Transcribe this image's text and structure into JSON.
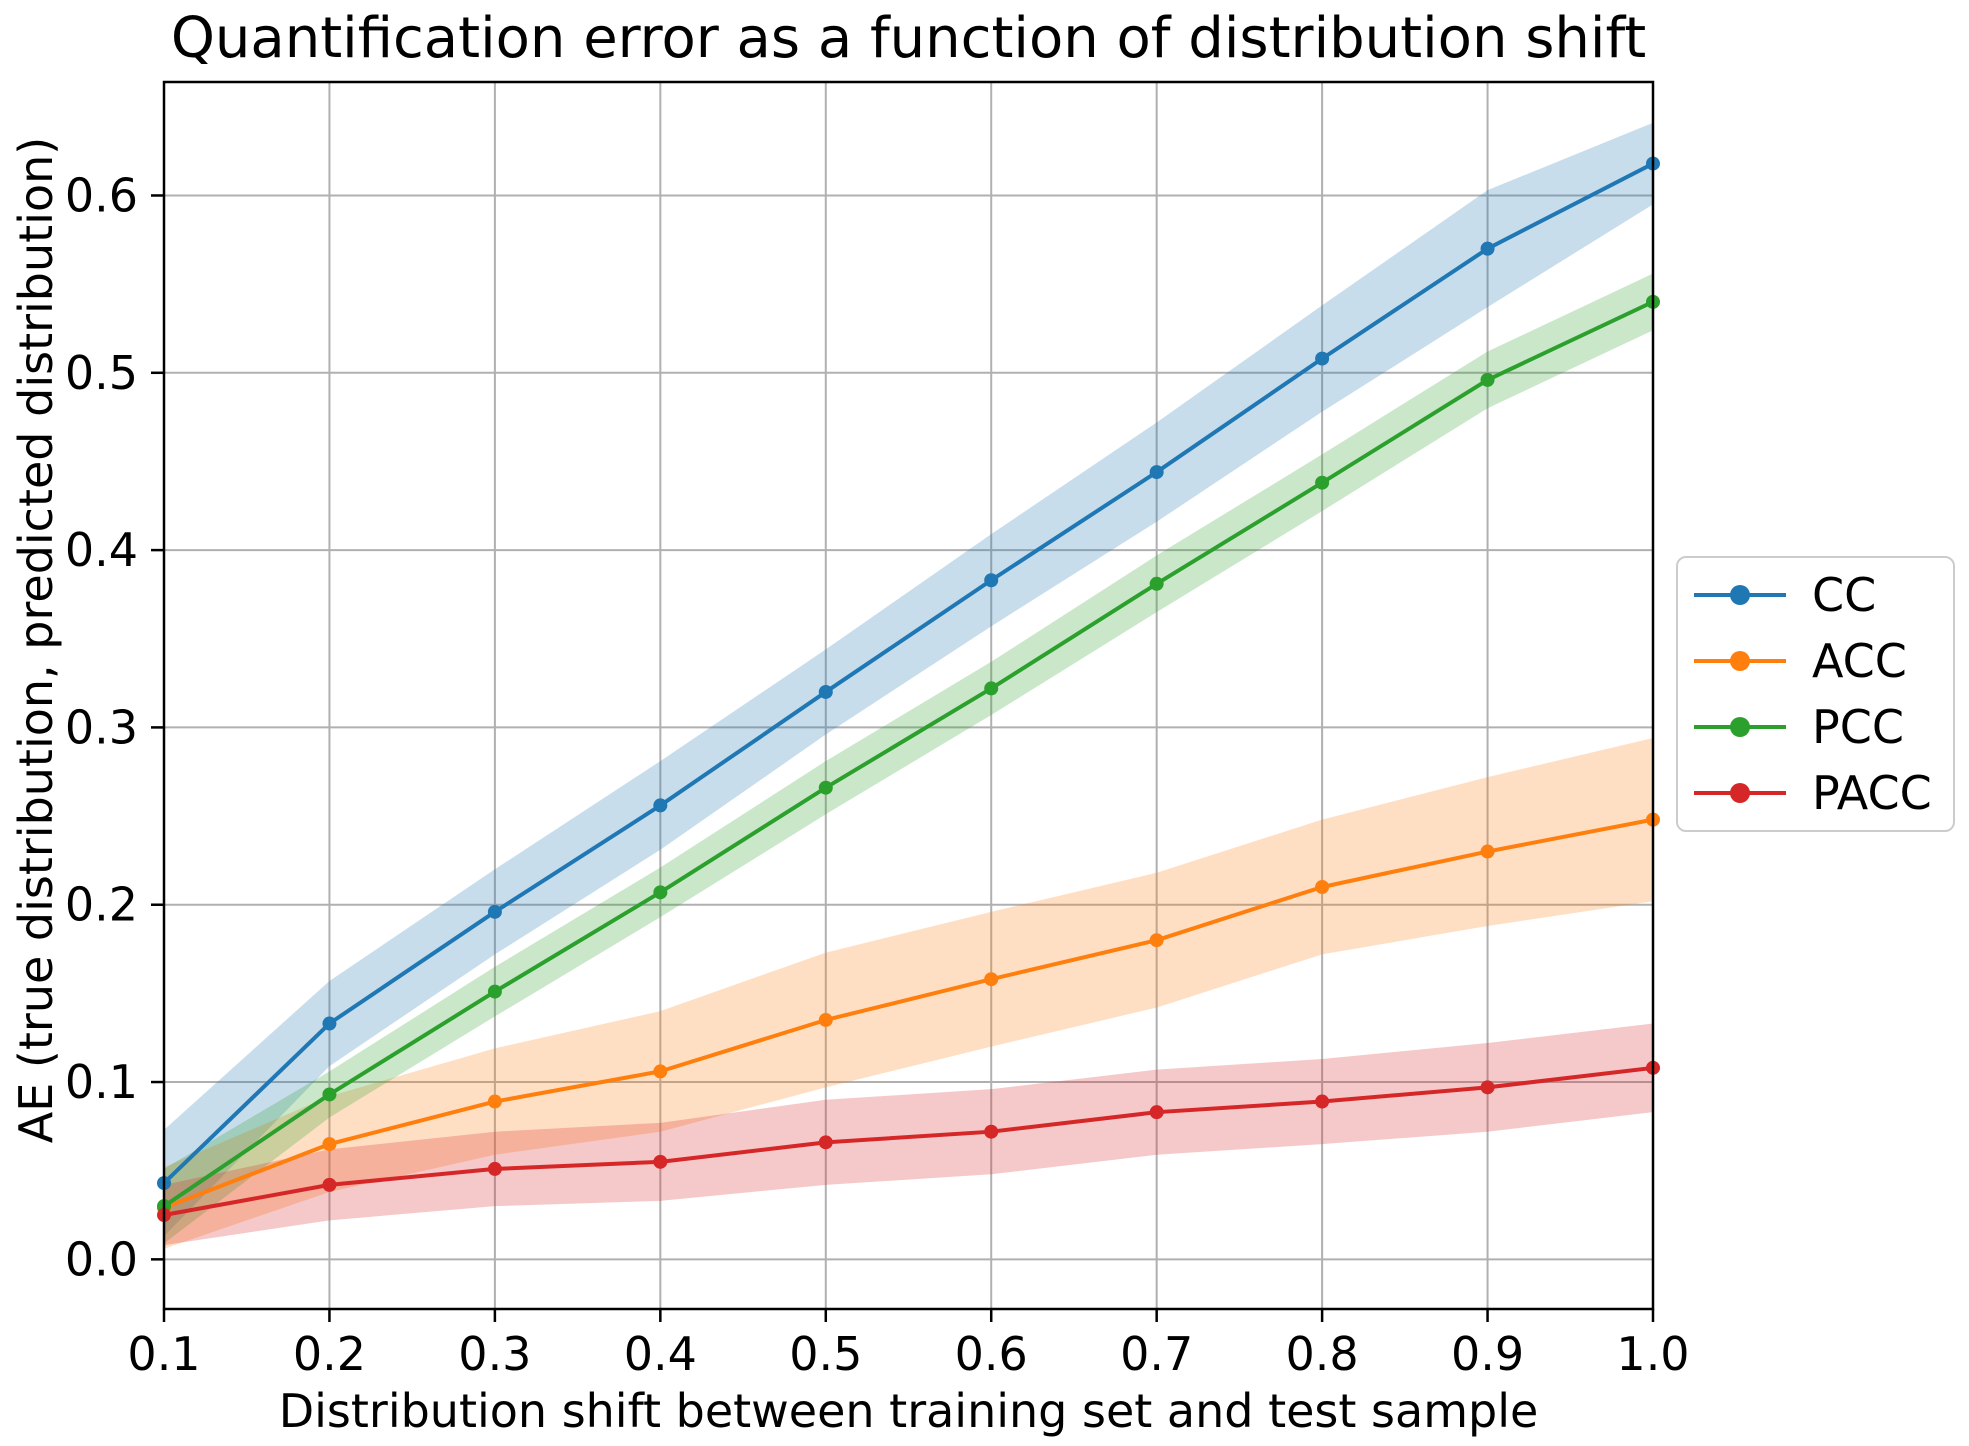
{
  "chart": {
    "title": "Quantification error as a function of distribution shift",
    "xlabel": "Distribution shift between training set and test sample",
    "ylabel": "AE (true distribution, predicted distribution)"
  },
  "chart_data": {
    "type": "line",
    "title": "Quantification error as a function of distribution shift",
    "xlabel": "Distribution shift between training set and test sample",
    "ylabel": "AE (true distribution, predicted distribution)",
    "x": [
      0.1,
      0.2,
      0.3,
      0.4,
      0.5,
      0.6,
      0.7,
      0.8,
      0.9,
      1.0
    ],
    "x_tick_labels": [
      "0.1",
      "0.2",
      "0.3",
      "0.4",
      "0.5",
      "0.6",
      "0.7",
      "0.8",
      "0.9",
      "1.0"
    ],
    "y_ticks": [
      0.0,
      0.1,
      0.2,
      0.3,
      0.4,
      0.5,
      0.6
    ],
    "y_tick_labels": [
      "0.0",
      "0.1",
      "0.2",
      "0.3",
      "0.4",
      "0.5",
      "0.6"
    ],
    "xlim": [
      0.1,
      1.0
    ],
    "ylim": [
      -0.028,
      0.664
    ],
    "grid": true,
    "grid_color": "#b0b0b0",
    "legend_position": "outside-right",
    "band_opacity": 0.25,
    "series": [
      {
        "name": "CC",
        "color": "#1f77b4",
        "values": [
          0.043,
          0.133,
          0.196,
          0.256,
          0.32,
          0.383,
          0.444,
          0.508,
          0.57,
          0.618
        ],
        "band_halfwidth": [
          0.03,
          0.024,
          0.024,
          0.025,
          0.024,
          0.026,
          0.028,
          0.03,
          0.033,
          0.023
        ]
      },
      {
        "name": "ACC",
        "color": "#ff7f0e",
        "values": [
          0.029,
          0.065,
          0.089,
          0.106,
          0.135,
          0.158,
          0.18,
          0.21,
          0.23,
          0.248
        ],
        "band_halfwidth": [
          0.023,
          0.027,
          0.03,
          0.034,
          0.038,
          0.038,
          0.038,
          0.038,
          0.042,
          0.046
        ]
      },
      {
        "name": "PCC",
        "color": "#2ca02c",
        "values": [
          0.03,
          0.093,
          0.151,
          0.207,
          0.266,
          0.322,
          0.381,
          0.438,
          0.496,
          0.54
        ],
        "band_halfwidth": [
          0.021,
          0.013,
          0.014,
          0.014,
          0.015,
          0.015,
          0.016,
          0.016,
          0.016,
          0.016
        ]
      },
      {
        "name": "PACC",
        "color": "#d62728",
        "values": [
          0.025,
          0.042,
          0.051,
          0.055,
          0.066,
          0.072,
          0.083,
          0.089,
          0.097,
          0.108
        ],
        "band_halfwidth": [
          0.017,
          0.02,
          0.021,
          0.022,
          0.024,
          0.024,
          0.024,
          0.024,
          0.025,
          0.025
        ]
      }
    ]
  }
}
